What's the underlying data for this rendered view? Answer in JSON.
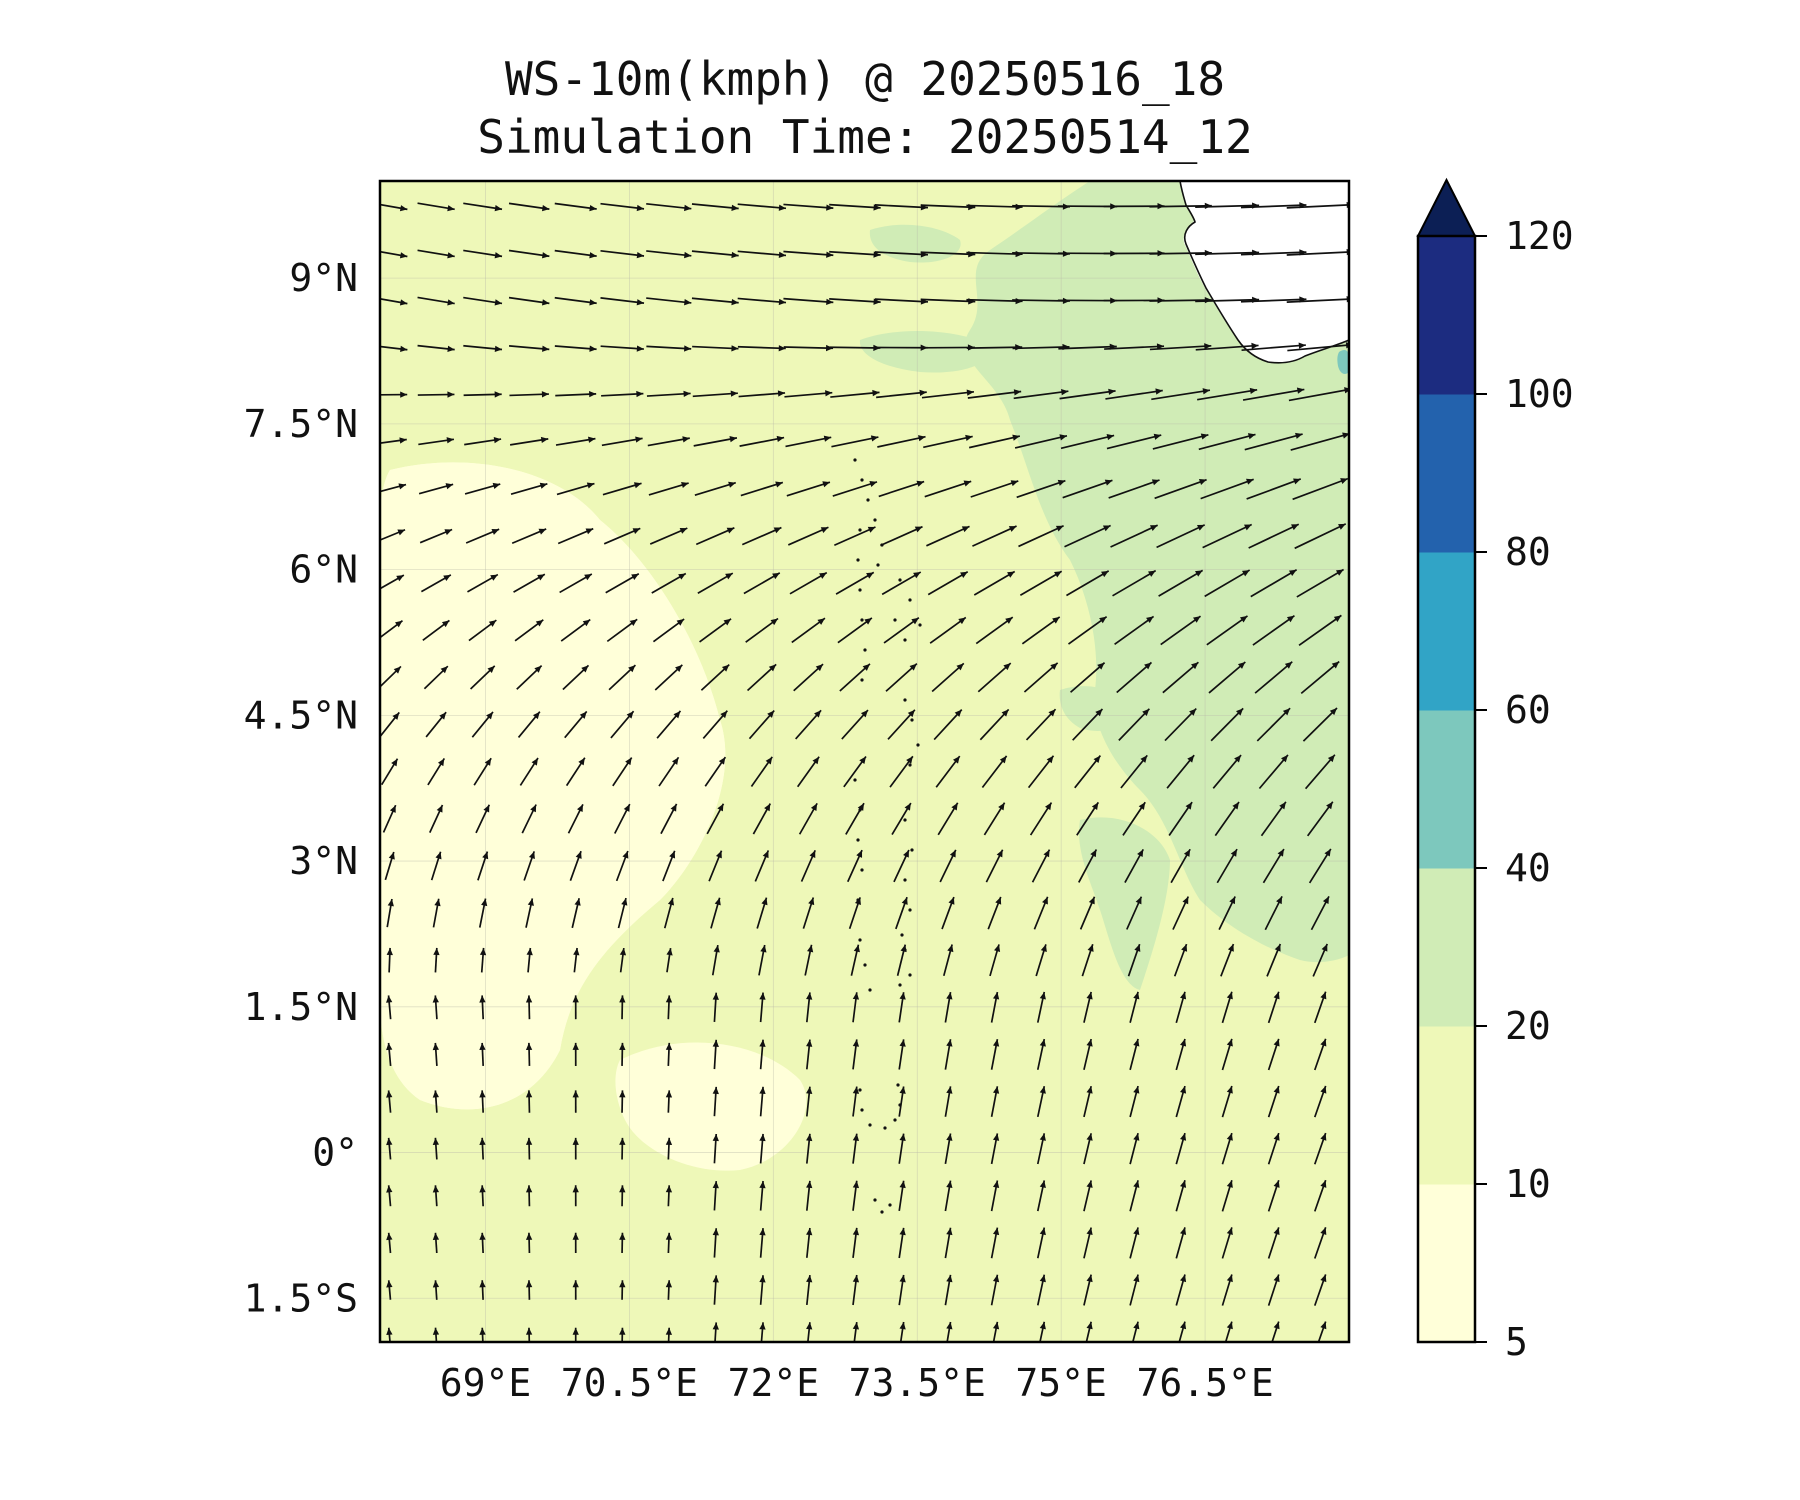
{
  "title": {
    "line1": "WS-10m(kmph) @ 20250516_18",
    "line2": "Simulation Time: 20250514_12"
  },
  "map": {
    "lon_range": [
      67.9,
      78.0
    ],
    "lat_range": [
      -1.95,
      10.0
    ],
    "lon_ticks": [
      {
        "value": 69.0,
        "label": "69°E"
      },
      {
        "value": 70.5,
        "label": "70.5°E"
      },
      {
        "value": 72.0,
        "label": "72°E"
      },
      {
        "value": 73.5,
        "label": "73.5°E"
      },
      {
        "value": 75.0,
        "label": "75°E"
      },
      {
        "value": 76.5,
        "label": "76.5°E"
      }
    ],
    "lat_ticks": [
      {
        "value": 9.0,
        "label": "9°N"
      },
      {
        "value": 7.5,
        "label": "7.5°N"
      },
      {
        "value": 6.0,
        "label": "6°N"
      },
      {
        "value": 4.5,
        "label": "4.5°N"
      },
      {
        "value": 3.0,
        "label": "3°N"
      },
      {
        "value": 1.5,
        "label": "1.5°N"
      },
      {
        "value": 0.0,
        "label": "0°"
      },
      {
        "value": -1.5,
        "label": "1.5°S"
      }
    ],
    "gridlines": true,
    "field_colors": {
      "calm": "#ffffd9",
      "light": "#eef8b8",
      "moderate": "#d0ecb6",
      "strong": "#7dc8bd"
    },
    "land_color": "#ffffff",
    "coast_color": "#111111"
  },
  "colorbar": {
    "levels": [
      5,
      10,
      20,
      40,
      60,
      80,
      100,
      120
    ],
    "labels": [
      "5",
      "10",
      "20",
      "40",
      "60",
      "80",
      "100",
      "120"
    ],
    "colors": [
      "#ffffd9",
      "#eef8b8",
      "#d0ecb6",
      "#7dc8bd",
      "#31a4c6",
      "#2362ad",
      "#1c2c80"
    ],
    "extend_color": "#0c1f55",
    "extend": "max"
  },
  "wind": {
    "units": "kmph",
    "grid_lon_start": 68.0,
    "grid_lon_step": 0.485,
    "grid_lat_start": -1.9,
    "grid_lat_step": 0.485
  }
}
